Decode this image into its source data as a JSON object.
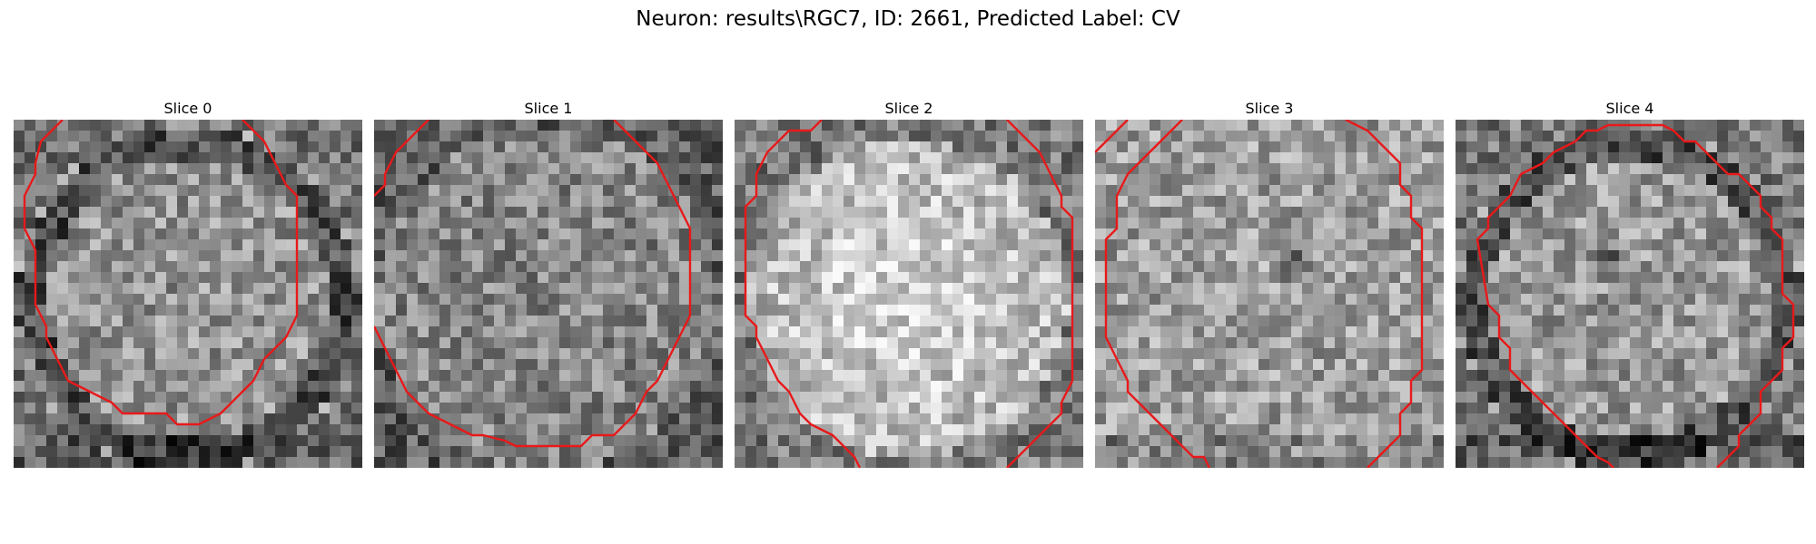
{
  "figure": {
    "title": "Neuron: results\\RGC7, ID: 2661, Predicted Label: CV"
  },
  "colors": {
    "contour": "#e8191a",
    "background": "#ffffff"
  },
  "slices": [
    {
      "label": "Slice 0",
      "tone": "ring-dark",
      "brightness": 0.58
    },
    {
      "label": "Slice 1",
      "tone": "uniform",
      "brightness": 0.52
    },
    {
      "label": "Slice 2",
      "tone": "bright-center",
      "brightness": 0.72
    },
    {
      "label": "Slice 3",
      "tone": "dark-spot",
      "brightness": 0.62
    },
    {
      "label": "Slice 4",
      "tone": "ring-dark-spot",
      "brightness": 0.6
    }
  ]
}
